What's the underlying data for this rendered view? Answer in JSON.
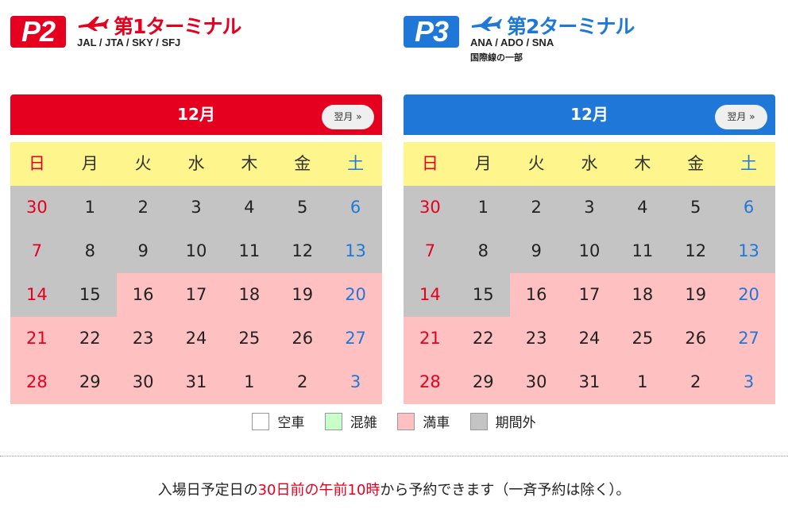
{
  "lots": [
    {
      "badge": "P2",
      "terminal": "第1ターミナル",
      "airlines": "JAL / JTA / SKY / SFJ",
      "note": "",
      "accent": "#e60020",
      "icon": "airplane-icon"
    },
    {
      "badge": "P3",
      "terminal": "第2ターミナル",
      "airlines": "ANA / ADO / SNA",
      "note": "国際線の一部",
      "accent": "#1f78d8",
      "icon": "airplane-icon"
    }
  ],
  "calendars": [
    {
      "month": "12月",
      "next_label": "翌月 »",
      "weekdays": [
        "日",
        "月",
        "火",
        "水",
        "木",
        "金",
        "土"
      ],
      "days": [
        {
          "d": "30",
          "s": "out"
        },
        {
          "d": "1",
          "s": "out"
        },
        {
          "d": "2",
          "s": "out"
        },
        {
          "d": "3",
          "s": "out"
        },
        {
          "d": "4",
          "s": "out"
        },
        {
          "d": "5",
          "s": "out"
        },
        {
          "d": "6",
          "s": "out"
        },
        {
          "d": "7",
          "s": "out"
        },
        {
          "d": "8",
          "s": "out"
        },
        {
          "d": "9",
          "s": "out"
        },
        {
          "d": "10",
          "s": "out"
        },
        {
          "d": "11",
          "s": "out"
        },
        {
          "d": "12",
          "s": "out"
        },
        {
          "d": "13",
          "s": "out"
        },
        {
          "d": "14",
          "s": "out"
        },
        {
          "d": "15",
          "s": "out"
        },
        {
          "d": "16",
          "s": "full"
        },
        {
          "d": "17",
          "s": "full"
        },
        {
          "d": "18",
          "s": "full"
        },
        {
          "d": "19",
          "s": "full"
        },
        {
          "d": "20",
          "s": "full"
        },
        {
          "d": "21",
          "s": "full"
        },
        {
          "d": "22",
          "s": "full"
        },
        {
          "d": "23",
          "s": "full"
        },
        {
          "d": "24",
          "s": "full"
        },
        {
          "d": "25",
          "s": "full"
        },
        {
          "d": "26",
          "s": "full"
        },
        {
          "d": "27",
          "s": "full"
        },
        {
          "d": "28",
          "s": "full"
        },
        {
          "d": "29",
          "s": "full"
        },
        {
          "d": "30",
          "s": "full"
        },
        {
          "d": "31",
          "s": "full"
        },
        {
          "d": "1",
          "s": "full"
        },
        {
          "d": "2",
          "s": "full"
        },
        {
          "d": "3",
          "s": "full"
        }
      ]
    },
    {
      "month": "12月",
      "next_label": "翌月 »",
      "weekdays": [
        "日",
        "月",
        "火",
        "水",
        "木",
        "金",
        "土"
      ],
      "days": [
        {
          "d": "30",
          "s": "out"
        },
        {
          "d": "1",
          "s": "out"
        },
        {
          "d": "2",
          "s": "out"
        },
        {
          "d": "3",
          "s": "out"
        },
        {
          "d": "4",
          "s": "out"
        },
        {
          "d": "5",
          "s": "out"
        },
        {
          "d": "6",
          "s": "out"
        },
        {
          "d": "7",
          "s": "out"
        },
        {
          "d": "8",
          "s": "out"
        },
        {
          "d": "9",
          "s": "out"
        },
        {
          "d": "10",
          "s": "out"
        },
        {
          "d": "11",
          "s": "out"
        },
        {
          "d": "12",
          "s": "out"
        },
        {
          "d": "13",
          "s": "out"
        },
        {
          "d": "14",
          "s": "out"
        },
        {
          "d": "15",
          "s": "out"
        },
        {
          "d": "16",
          "s": "full"
        },
        {
          "d": "17",
          "s": "full"
        },
        {
          "d": "18",
          "s": "full"
        },
        {
          "d": "19",
          "s": "full"
        },
        {
          "d": "20",
          "s": "full"
        },
        {
          "d": "21",
          "s": "full"
        },
        {
          "d": "22",
          "s": "full"
        },
        {
          "d": "23",
          "s": "full"
        },
        {
          "d": "24",
          "s": "full"
        },
        {
          "d": "25",
          "s": "full"
        },
        {
          "d": "26",
          "s": "full"
        },
        {
          "d": "27",
          "s": "full"
        },
        {
          "d": "28",
          "s": "full"
        },
        {
          "d": "29",
          "s": "full"
        },
        {
          "d": "30",
          "s": "full"
        },
        {
          "d": "31",
          "s": "full"
        },
        {
          "d": "1",
          "s": "full"
        },
        {
          "d": "2",
          "s": "full"
        },
        {
          "d": "3",
          "s": "full"
        }
      ]
    }
  ],
  "legend": [
    {
      "label": "空車",
      "state": "vacant",
      "color": "#ffffff"
    },
    {
      "label": "混雑",
      "state": "busy",
      "color": "#c8ffc8"
    },
    {
      "label": "満車",
      "state": "full",
      "color": "#ffc0c2"
    },
    {
      "label": "期間外",
      "state": "out",
      "color": "#c4c4c4"
    }
  ],
  "footnote": {
    "before": "入場日予定日の",
    "highlight": "30日前の午前10時",
    "after": "から予約できます（一斉予約は除く）。"
  },
  "colors": {
    "sunday": "#e60020",
    "saturday": "#1f78d8",
    "weekday_header_bg": "#fff58d"
  }
}
